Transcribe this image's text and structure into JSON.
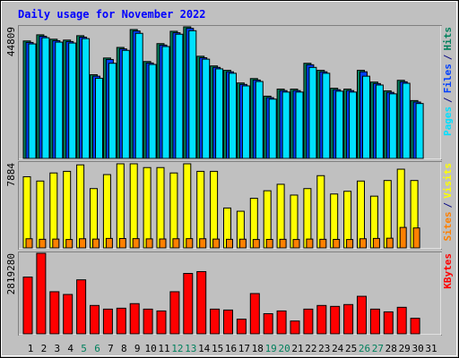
{
  "title": "Daily usage for November 2022",
  "categories": [
    "1",
    "2",
    "3",
    "4",
    "5",
    "6",
    "7",
    "8",
    "9",
    "10",
    "11",
    "12",
    "13",
    "14",
    "15",
    "16",
    "17",
    "18",
    "19",
    "20",
    "21",
    "22",
    "23",
    "24",
    "25",
    "26",
    "27",
    "28",
    "29",
    "30",
    "31"
  ],
  "category_colors": [
    "#000000",
    "#000000",
    "#000000",
    "#000000",
    "#00805c",
    "#00805c",
    "#000000",
    "#000000",
    "#000000",
    "#000000",
    "#000000",
    "#00805c",
    "#00805c",
    "#000000",
    "#000000",
    "#000000",
    "#000000",
    "#000000",
    "#00805c",
    "#00805c",
    "#000000",
    "#000000",
    "#000000",
    "#000000",
    "#000000",
    "#00805c",
    "#00805c",
    "#000000",
    "#000000",
    "#000000",
    "#000000"
  ],
  "legend_separator": "/",
  "chart_data": [
    {
      "type": "bar",
      "ylim": [
        0,
        44809
      ],
      "yticks": [
        44809
      ],
      "series": [
        {
          "name": "Hits",
          "color": "#00805c",
          "values": [
            40000,
            42100,
            40600,
            40300,
            41800,
            28500,
            34200,
            37800,
            43900,
            33000,
            39100,
            43300,
            44809,
            34800,
            31500,
            30000,
            25700,
            27200,
            21200,
            23600,
            23600,
            32400,
            30000,
            23900,
            23600,
            30000,
            26000,
            23000,
            26600,
            19700,
            null
          ]
        },
        {
          "name": "Files",
          "color": "#0040ff",
          "values": [
            39500,
            41600,
            40100,
            39800,
            41300,
            28000,
            33700,
            37300,
            43400,
            32500,
            38600,
            42800,
            44300,
            34300,
            31000,
            29500,
            25200,
            26700,
            20700,
            23100,
            23100,
            31900,
            29500,
            23400,
            23100,
            29500,
            25500,
            22500,
            26100,
            19200,
            null
          ]
        },
        {
          "name": "Pages",
          "color": "#00e0ff",
          "values": [
            39000,
            41100,
            39600,
            39300,
            40800,
            27300,
            32400,
            36800,
            42600,
            32000,
            38100,
            42300,
            43500,
            33800,
            30500,
            29000,
            24700,
            26200,
            20200,
            22600,
            22600,
            31000,
            29000,
            22900,
            22600,
            28000,
            25000,
            22000,
            25600,
            18700,
            null
          ]
        }
      ]
    },
    {
      "type": "bar",
      "ylim": [
        0,
        7884
      ],
      "yticks": [
        7884
      ],
      "series": [
        {
          "name": "Visits",
          "color": "#ffff00",
          "values": [
            6600,
            6200,
            6950,
            7100,
            7700,
            5500,
            6800,
            7800,
            7800,
            7450,
            7450,
            6950,
            7800,
            7100,
            7100,
            3700,
            3400,
            4600,
            5300,
            5900,
            4900,
            5500,
            6700,
            5000,
            5250,
            6200,
            4800,
            6250,
            7300,
            6250,
            null
          ]
        },
        {
          "name": "Sites",
          "color": "#ff8000",
          "values": [
            850,
            800,
            820,
            780,
            850,
            820,
            880,
            870,
            860,
            840,
            830,
            850,
            860,
            850,
            820,
            800,
            810,
            780,
            790,
            800,
            780,
            820,
            800,
            790,
            780,
            850,
            880,
            900,
            1900,
            1850,
            null
          ]
        }
      ]
    },
    {
      "type": "bar",
      "ylim": [
        0,
        2819280
      ],
      "yticks": [
        2819280
      ],
      "series": [
        {
          "name": "KBytes",
          "color": "#ff0000",
          "values": [
            1986000,
            2819280,
            1474000,
            1378000,
            1890000,
            993000,
            865000,
            897000,
            1057000,
            865000,
            801000,
            1474000,
            2114000,
            2178000,
            865000,
            833000,
            513000,
            1410000,
            705000,
            801000,
            449000,
            865000,
            993000,
            961000,
            1025000,
            1314000,
            865000,
            769000,
            929000,
            545000,
            null
          ]
        }
      ]
    }
  ]
}
